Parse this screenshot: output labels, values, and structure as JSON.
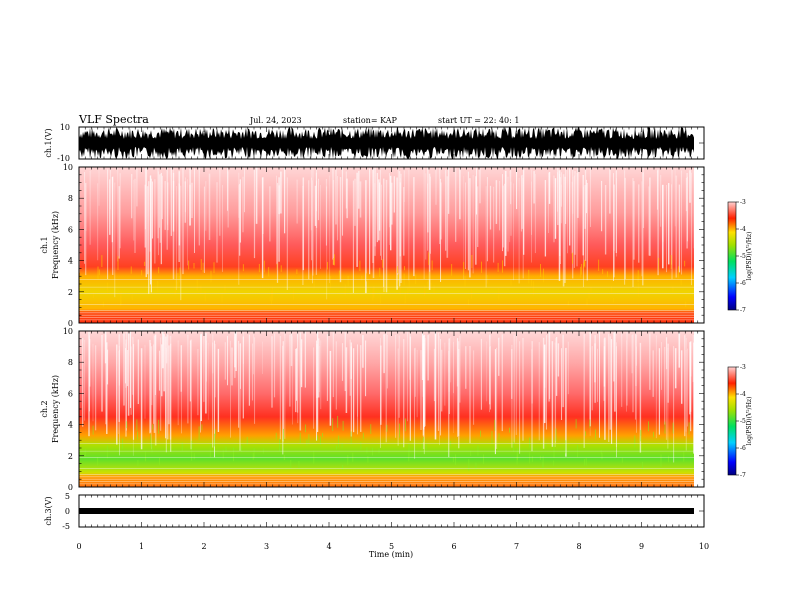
{
  "header": {
    "title": "VLF Spectra",
    "date": "Jul. 24, 2023",
    "station": "station= KAP",
    "start": "start UT =  22: 40: 1"
  },
  "chart_data": [
    {
      "type": "line",
      "panel": "ch1-waveform",
      "ylabel": "ch.1(V)",
      "ylim": [
        -10,
        10
      ],
      "yticks": [
        "10",
        "-10"
      ],
      "xlim": [
        0,
        10
      ]
    },
    {
      "type": "heatmap",
      "panel": "ch1-spectrogram",
      "ylabel_line1": "ch.1",
      "ylabel_line2": "Frequency (kHz)",
      "ylim": [
        0,
        10
      ],
      "yticks": [
        "0",
        "2",
        "4",
        "6",
        "8",
        "10"
      ],
      "xlim": [
        0,
        10
      ],
      "data_end_min": 9.85,
      "colorbar": {
        "label": "log(PSD)(V²/Hz)",
        "ticks": [
          "-3",
          "-4",
          "-5",
          "-6",
          "-7"
        ],
        "range": [
          -7,
          -3
        ]
      },
      "bands": [
        {
          "from_khz": 0.0,
          "to_khz": 0.8,
          "level": "red-striped"
        },
        {
          "from_khz": 0.8,
          "to_khz": 3.6,
          "level": "yellow"
        },
        {
          "from_khz": 3.6,
          "to_khz": 10.0,
          "level": "red-fading"
        }
      ]
    },
    {
      "type": "heatmap",
      "panel": "ch2-spectrogram",
      "ylabel_line1": "ch.2",
      "ylabel_line2": "Frequency (kHz)",
      "ylim": [
        0,
        10
      ],
      "yticks": [
        "0",
        "2",
        "4",
        "6",
        "8",
        "10"
      ],
      "xlim": [
        0,
        10
      ],
      "data_end_min": 9.85,
      "colorbar": {
        "label": "log(PSD)(V²/Hz)",
        "ticks": [
          "-3",
          "-4",
          "-5",
          "-6",
          "-7"
        ],
        "range": [
          -7,
          -3
        ]
      },
      "bands": [
        {
          "from_khz": 0.0,
          "to_khz": 0.8,
          "level": "orange-striped"
        },
        {
          "from_khz": 0.8,
          "to_khz": 3.0,
          "level": "green"
        },
        {
          "from_khz": 3.0,
          "to_khz": 4.5,
          "level": "yellow-orange"
        },
        {
          "from_khz": 4.5,
          "to_khz": 10.0,
          "level": "red-fading"
        }
      ]
    },
    {
      "type": "line",
      "panel": "ch3-waveform",
      "ylabel": "ch.3(V)",
      "ylim": [
        -5,
        5
      ],
      "yticks": [
        "5",
        "0",
        "-5"
      ],
      "xlim": [
        0,
        10
      ],
      "xlabel": "Time (min)",
      "xticks": [
        "0",
        "1",
        "2",
        "3",
        "4",
        "5",
        "6",
        "7",
        "8",
        "9",
        "10"
      ]
    }
  ],
  "colors": {
    "red": "#ff2020",
    "orange": "#ff8800",
    "yellow": "#f2e600",
    "green": "#33dd22",
    "axis": "#000000"
  }
}
